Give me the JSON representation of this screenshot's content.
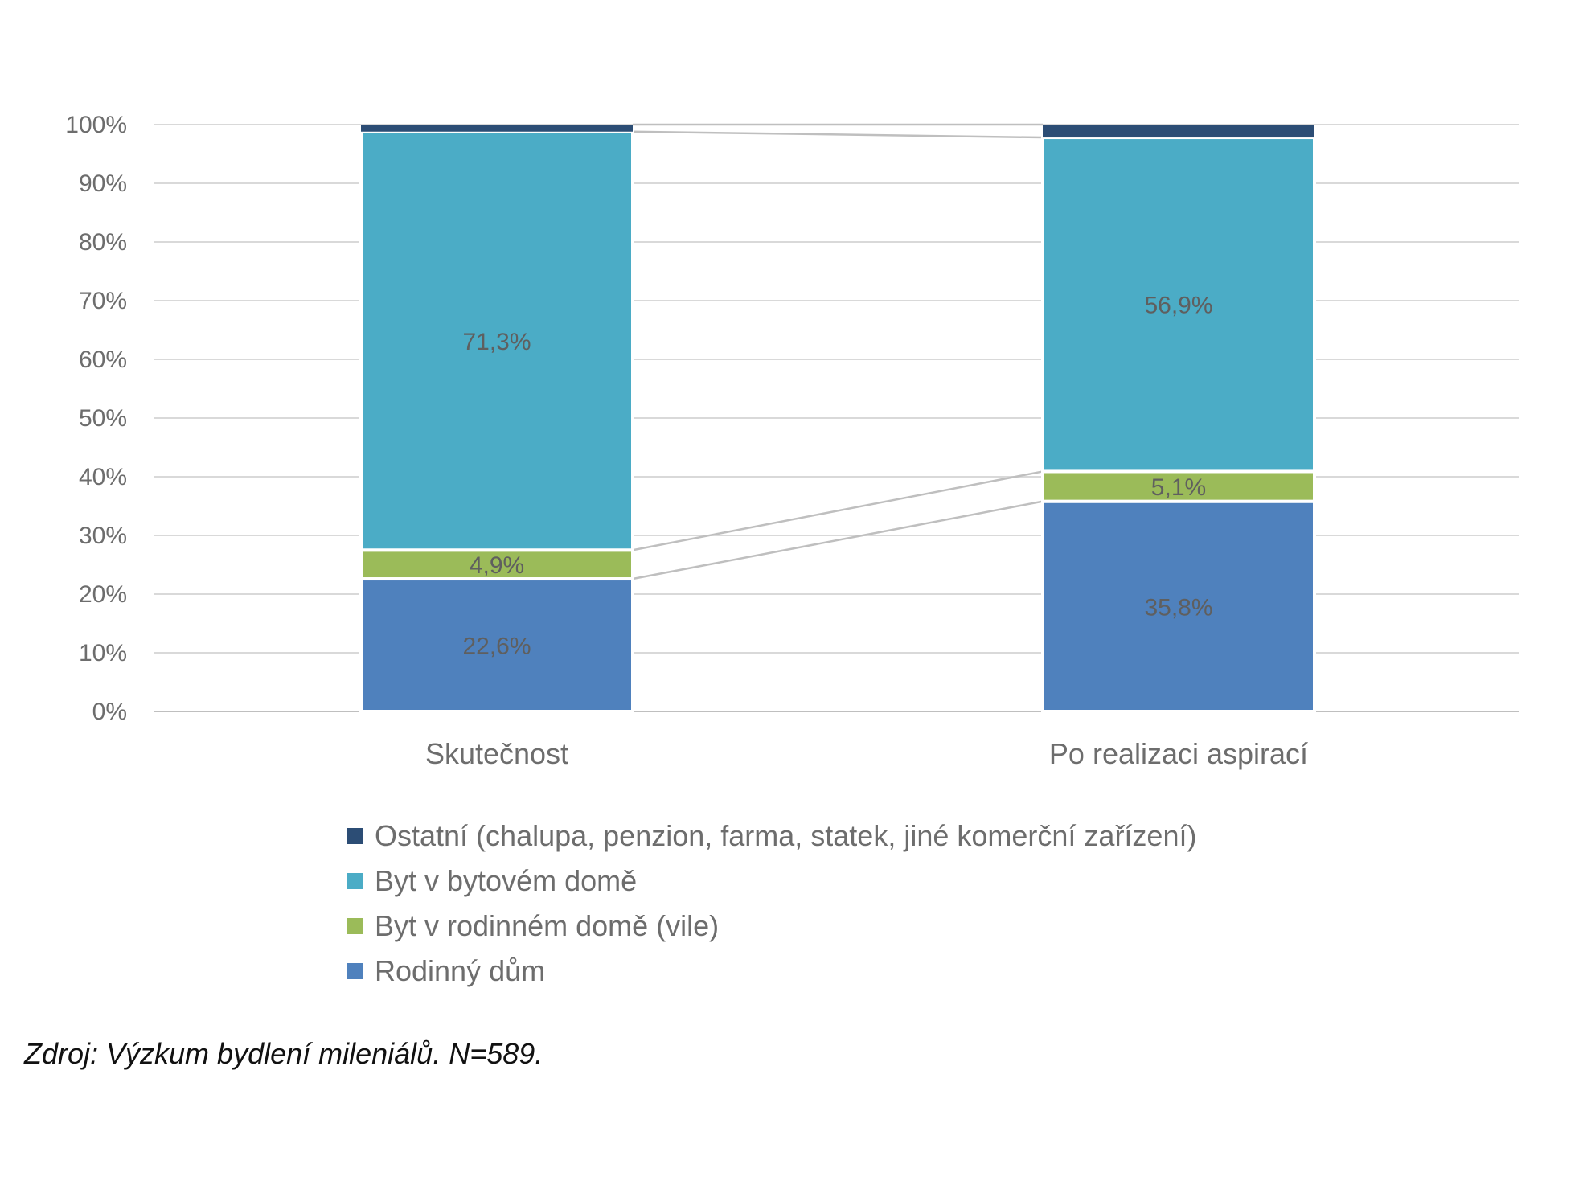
{
  "chart_data": {
    "type": "bar",
    "stacked": true,
    "percent": true,
    "categories": [
      "Skutečnost",
      "Po realizaci aspirací"
    ],
    "series": [
      {
        "name": "Rodinný dům",
        "color": "#4f81bd",
        "values": [
          22.6,
          35.8
        ]
      },
      {
        "name": "Byt v rodinném domě (vile)",
        "color": "#9bbb59",
        "values": [
          4.9,
          5.1
        ]
      },
      {
        "name": "Byt v bytovém domě",
        "color": "#4bacc6",
        "values": [
          71.3,
          56.9
        ]
      },
      {
        "name": "Ostatní (chalupa, penzion, farma, statek, jiné komerční zařízení)",
        "color": "#2c4d75",
        "values": [
          1.2,
          2.2
        ]
      }
    ],
    "data_labels": [
      [
        "22,6%",
        "35,8%"
      ],
      [
        "4,9%",
        "5,1%"
      ],
      [
        "71,3%",
        "56,9%"
      ],
      [
        "",
        ""
      ]
    ],
    "yticks": [
      "0%",
      "10%",
      "20%",
      "30%",
      "40%",
      "50%",
      "60%",
      "70%",
      "80%",
      "90%",
      "100%"
    ],
    "ylim": [
      0,
      100
    ],
    "grid": true,
    "series_lines": true,
    "legend_position": "bottom"
  },
  "source_note": "Zdroj: Výzkum bydlení mileniálů. N=589."
}
